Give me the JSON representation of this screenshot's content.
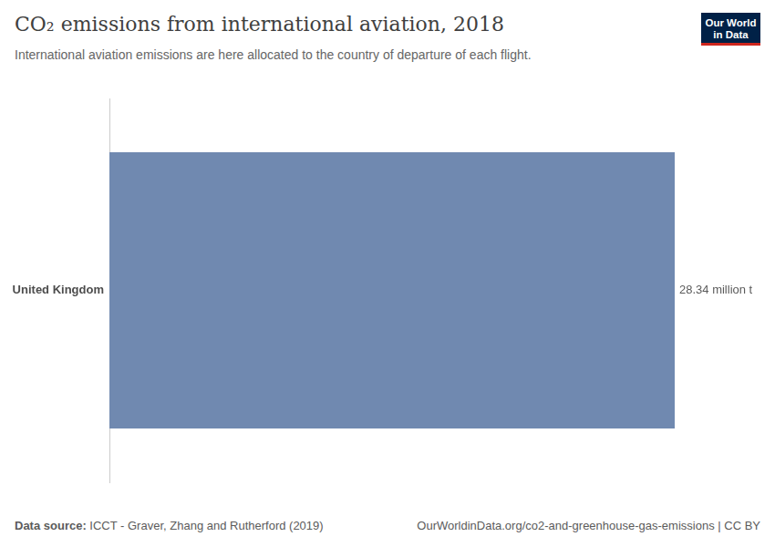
{
  "chart_data": {
    "type": "bar",
    "orientation": "horizontal",
    "title": "CO₂ emissions from international aviation, 2018",
    "subtitle": "International aviation emissions are here allocated to the country of departure of each flight.",
    "categories": [
      "United Kingdom"
    ],
    "values": [
      28.34
    ],
    "value_labels": [
      "28.34 million t"
    ],
    "data_labels": true,
    "color": "#7089b0",
    "xlim": [
      0,
      28.34
    ],
    "grid": false,
    "tick_labels": "y",
    "source_label": "Data source:",
    "source": "ICCT - Graver, Zhang and Rutherford (2019)",
    "url": "OurWorldinData.org/co2-and-greenhouse-gas-emissions | CC BY",
    "logo": [
      "Our World",
      "in Data"
    ]
  }
}
